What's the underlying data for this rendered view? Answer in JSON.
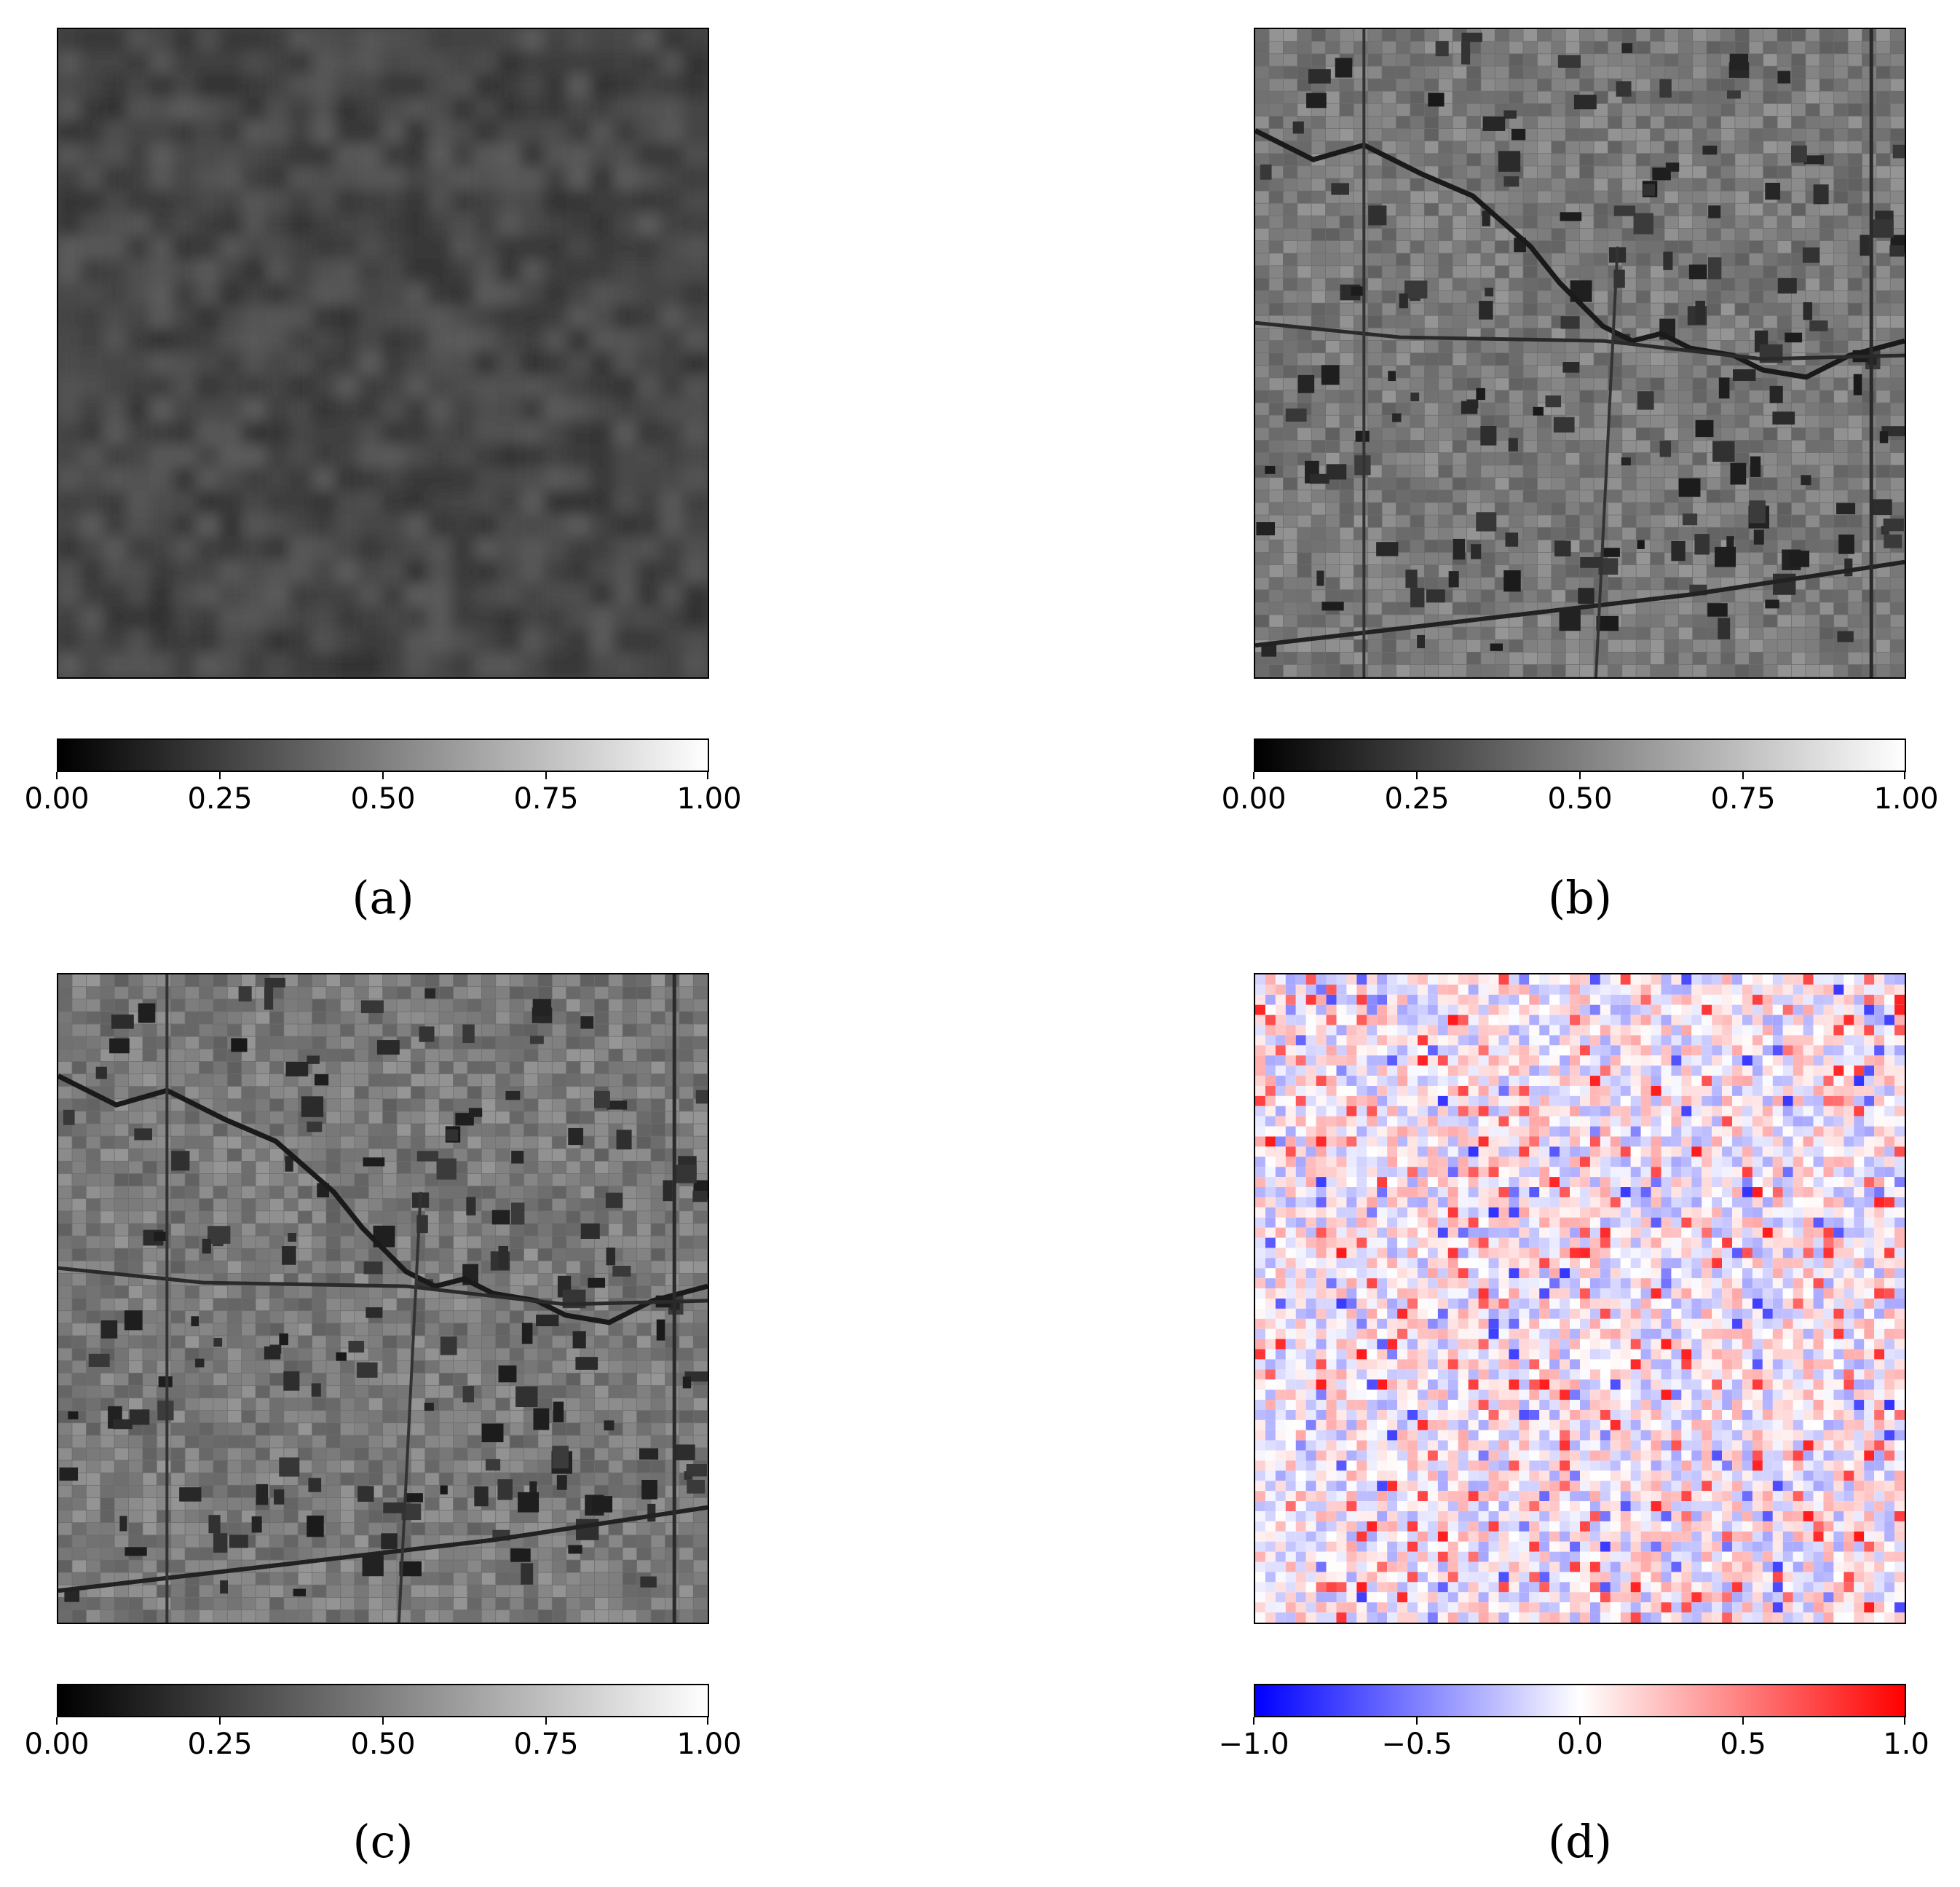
{
  "figure": {
    "panels": [
      {
        "id": "a",
        "caption": "(a)",
        "image": "blurred grayscale low-resolution satellite field",
        "colorbar": {
          "colormap": "gray",
          "ticks": [
            "0.00",
            "0.25",
            "0.50",
            "0.75",
            "1.00"
          ]
        }
      },
      {
        "id": "b",
        "caption": "(b)",
        "image": "high-resolution grayscale satellite agricultural parcels",
        "colorbar": {
          "colormap": "gray",
          "ticks": [
            "0.00",
            "0.25",
            "0.50",
            "0.75",
            "1.00"
          ]
        }
      },
      {
        "id": "c",
        "caption": "(c)",
        "image": "reconstructed grayscale satellite agricultural parcels",
        "colorbar": {
          "colormap": "gray",
          "ticks": [
            "0.00",
            "0.25",
            "0.50",
            "0.75",
            "1.00"
          ]
        }
      },
      {
        "id": "d",
        "caption": "(d)",
        "image": "difference map red-white-blue",
        "colorbar": {
          "colormap": "bwr",
          "ticks": [
            "−1.0",
            "−0.5",
            "0.0",
            "0.5",
            "1.0"
          ]
        }
      }
    ]
  }
}
